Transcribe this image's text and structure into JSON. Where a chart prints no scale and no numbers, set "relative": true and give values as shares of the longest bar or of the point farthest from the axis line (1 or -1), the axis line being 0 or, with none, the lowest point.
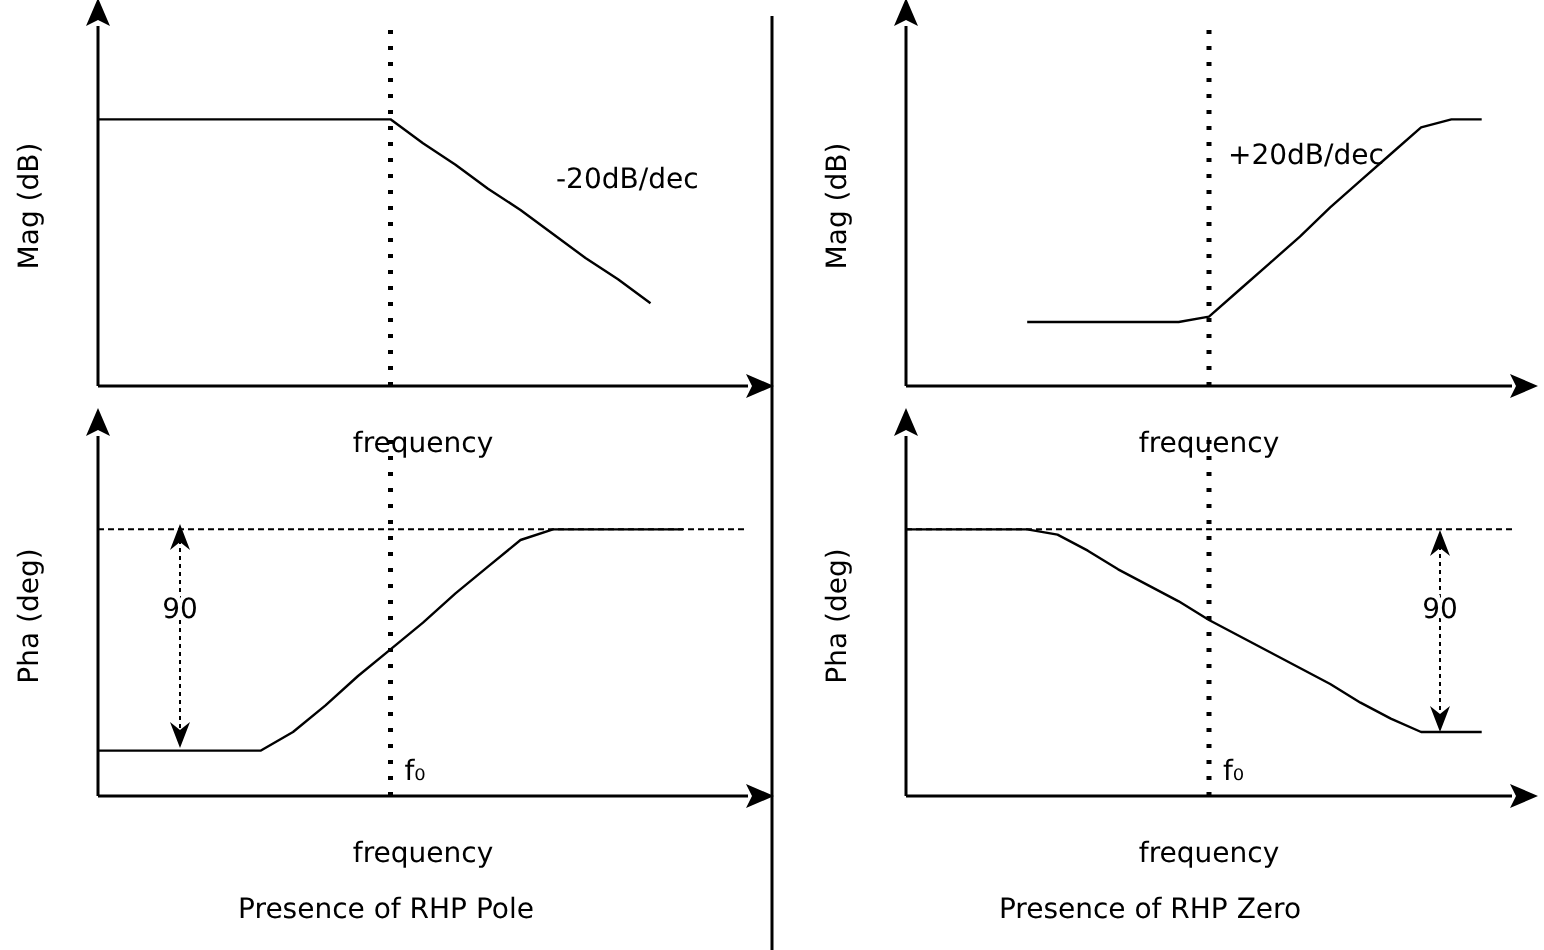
{
  "chart_data": [
    {
      "type": "line",
      "relative": true,
      "ylabel": "Mag (dB)",
      "xlabel": "frequency",
      "categories": [
        null,
        null,
        null,
        null,
        null,
        null,
        null,
        null,
        null,
        null,
        null,
        null,
        null,
        null,
        null,
        null,
        null,
        null,
        null,
        null,
        null
      ],
      "series": [
        {
          "color": "#000000",
          "values": [
            1,
            1,
            1,
            1,
            1,
            1,
            1,
            1,
            1,
            1,
            0.91,
            0.83,
            0.74,
            0.66,
            0.57,
            0.48,
            0.4,
            0.31,
            null,
            null,
            null
          ]
        }
      ],
      "annotations": [
        "-20dB/dec"
      ],
      "marker": "none"
    },
    {
      "type": "line",
      "relative": true,
      "ylabel": "Mag (dB)",
      "xlabel": "frequency",
      "categories": [
        null,
        null,
        null,
        null,
        null,
        null,
        null,
        null,
        null,
        null,
        null,
        null,
        null,
        null,
        null,
        null,
        null,
        null,
        null,
        null,
        null
      ],
      "series": [
        {
          "color": "#000000",
          "values": [
            null,
            null,
            null,
            null,
            0.24,
            0.24,
            0.24,
            0.24,
            0.24,
            0.24,
            0.26,
            0.36,
            0.46,
            0.56,
            0.67,
            0.77,
            0.87,
            0.97,
            1,
            1,
            null
          ]
        }
      ],
      "annotations": [
        "+20dB/dec"
      ],
      "marker": "none"
    },
    {
      "type": "line",
      "relative": true,
      "ylabel": "Pha (deg)",
      "xlabel": "frequency",
      "categories": [
        null,
        null,
        null,
        null,
        null,
        null,
        null,
        null,
        null,
        null,
        null,
        null,
        null,
        null,
        null,
        null,
        null,
        null,
        null,
        null,
        null
      ],
      "series": [
        {
          "color": "#000000",
          "values": [
            0.17,
            0.17,
            0.17,
            0.17,
            0.17,
            0.17,
            0.24,
            0.34,
            0.45,
            0.55,
            0.65,
            0.76,
            0.86,
            0.96,
            1,
            1,
            1,
            1,
            1,
            null,
            null
          ]
        }
      ],
      "ref_lines": [
        {
          "axis": "y",
          "value": 1,
          "line_style": "dashed",
          "color": "#000000"
        }
      ],
      "annotations": [
        "90",
        "f₀",
        "Presence of RHP Pole"
      ],
      "marker": "none"
    },
    {
      "type": "line",
      "relative": true,
      "ylabel": "Pha (deg)",
      "xlabel": "frequency",
      "categories": [
        null,
        null,
        null,
        null,
        null,
        null,
        null,
        null,
        null,
        null,
        null,
        null,
        null,
        null,
        null,
        null,
        null,
        null,
        null,
        null,
        null
      ],
      "series": [
        {
          "color": "#000000",
          "values": [
            1,
            1,
            1,
            1,
            1,
            0.98,
            0.92,
            0.85,
            0.79,
            0.73,
            0.66,
            0.6,
            0.54,
            0.48,
            0.42,
            0.35,
            0.29,
            0.24,
            0.24,
            0.24,
            null
          ]
        }
      ],
      "ref_lines": [
        {
          "axis": "y",
          "value": 1,
          "line_style": "dashed",
          "color": "#000000"
        }
      ],
      "annotations": [
        "90",
        "f₀",
        "Presence of RHP Zero"
      ],
      "marker": "none"
    }
  ]
}
